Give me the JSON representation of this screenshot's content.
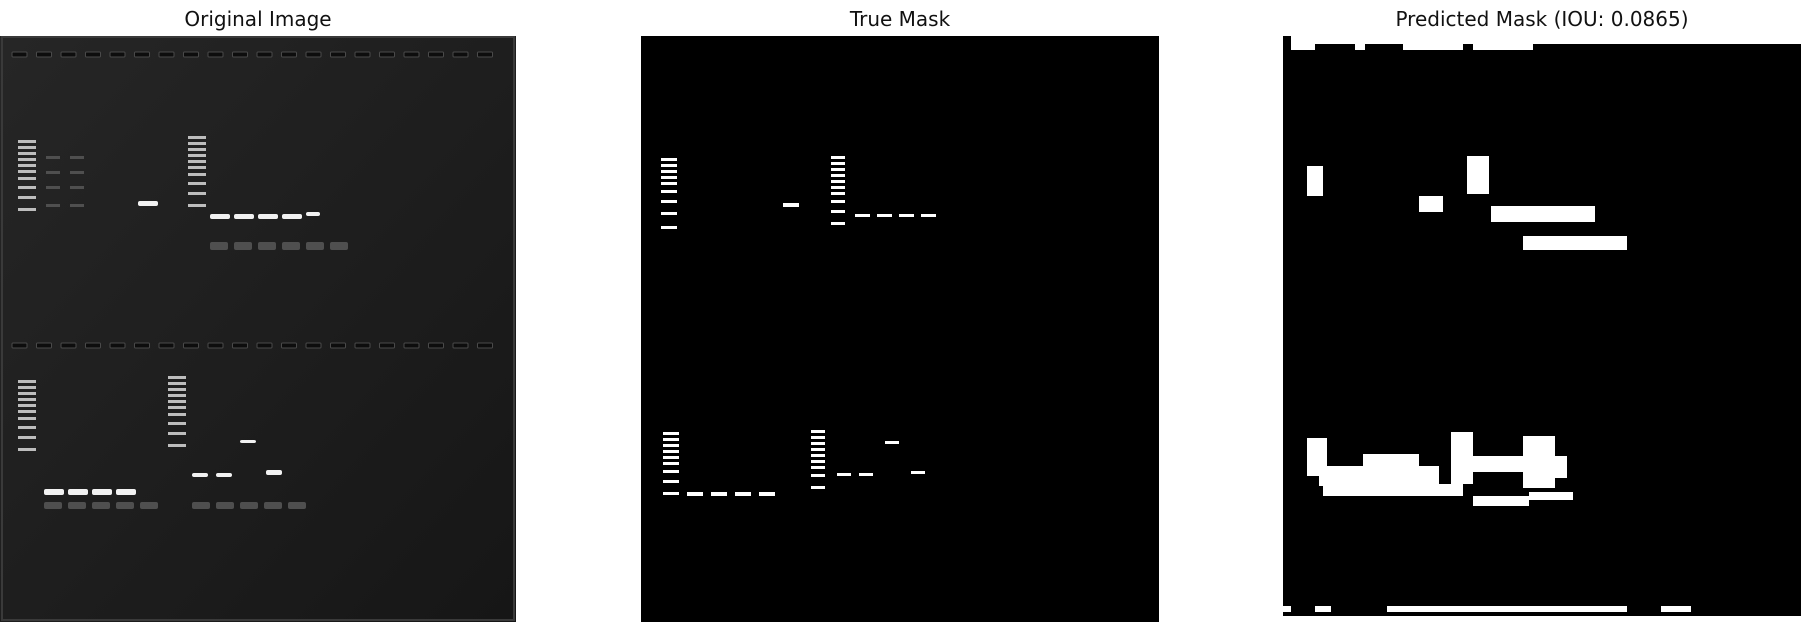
{
  "figure": {
    "panels": [
      {
        "title": "Original Image"
      },
      {
        "title": "True Mask"
      },
      {
        "title": "Predicted Mask (IOU: 0.0865)"
      }
    ]
  },
  "colors": {
    "background": "#ffffff",
    "image_background": "#000000",
    "mask_foreground": "#ffffff",
    "gel_background": "#1c1c1c",
    "band_bright": "#ffffff",
    "band_faint": "#5a5a5a"
  }
}
